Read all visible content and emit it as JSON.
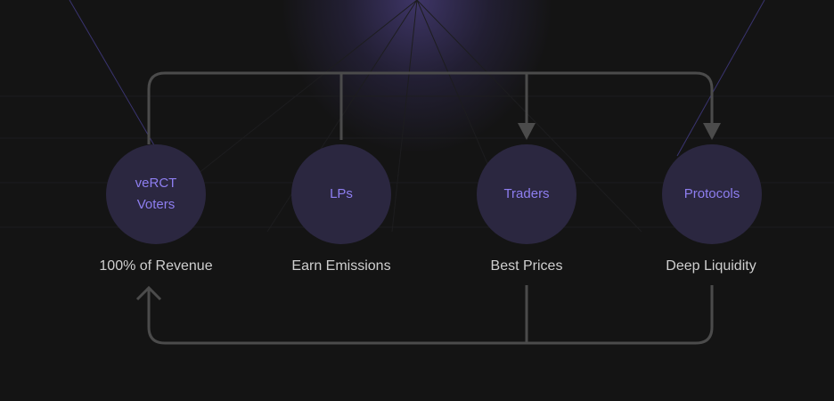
{
  "colors": {
    "background": "#141414",
    "node_fill": "#2b2740",
    "node_text": "#8e7ef0",
    "caption_text": "#cfcfcf",
    "connector": "#4b4b4b"
  },
  "nodes": [
    {
      "label": "veRCT\nVoters",
      "caption": "100% of Revenue"
    },
    {
      "label": "LPs",
      "caption": "Earn Emissions"
    },
    {
      "label": "Traders",
      "caption": "Best Prices"
    },
    {
      "label": "Protocols",
      "caption": "Deep Liquidity"
    }
  ]
}
